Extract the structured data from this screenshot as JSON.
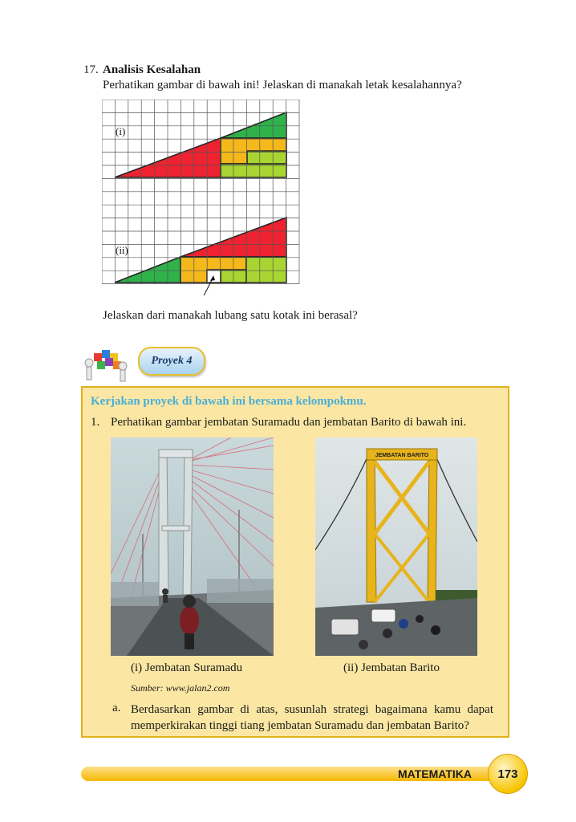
{
  "question": {
    "number": "17.",
    "title": "Analisis Kesalahan",
    "instruction": "Perhatikan gambar di bawah ini! Jelaskan di manakah letak kesalahannya?",
    "figure_label_1": "(i)",
    "figure_label_2": "(ii)",
    "followup": "Jelaskan dari manakah lubang satu kotak ini berasal?"
  },
  "project": {
    "badge": "Proyek 4",
    "box_title": "Kerjakan proyek di bawah ini bersama kelompokmu.",
    "item1_number": "1.",
    "item1_text": "Perhatikan gambar jembatan Suramadu dan jembatan Barito di bawah ini.",
    "photo2_sign": "JEMBATAN BARITO",
    "caption1": "(i)   Jembatan Suramadu",
    "caption2": "(ii)   Jembatan Barito",
    "source": "Sumber: www.jalan2.com",
    "sub_a_number": "a.",
    "sub_a_text": "Berdasarkan gambar di atas, susunlah strategi bagaimana kamu dapat memperkirakan tinggi tiang jembatan Suramadu dan jembatan  Barito?"
  },
  "footer": {
    "label": "MATEMATIKA",
    "page": "173"
  },
  "colors": {
    "red": "#ee2230",
    "green": "#2fb24a",
    "yellow": "#f4b81b",
    "light_green": "#a8d531",
    "box_fill": "#fbe7a3",
    "box_border": "#e2b11c",
    "title_blue": "#4aaed8"
  }
}
